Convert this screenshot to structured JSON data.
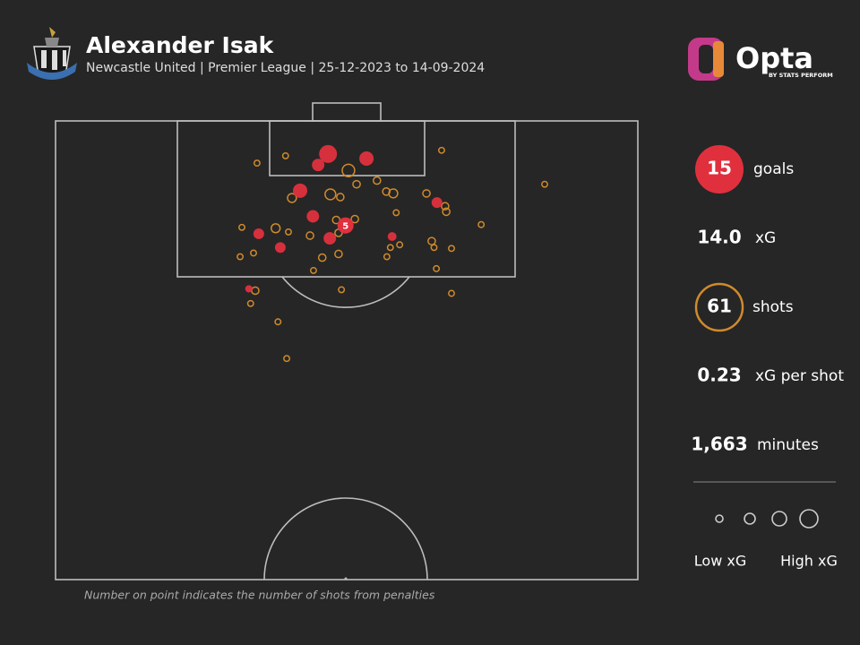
{
  "header": {
    "title": "Alexander Isak",
    "subtitle": "Newcastle United | Premier League | 25-12-2023 to 14-09-2024"
  },
  "brand": {
    "name": "Opta",
    "tagline": "BY STATS PERFORM"
  },
  "summary": {
    "goals": "15",
    "xg": {
      "value": "14.0",
      "label": "xG"
    },
    "shots": "61",
    "xg_per_shot": {
      "value": "0.23",
      "label": "xG per shot"
    },
    "minutes": {
      "value": "1,663",
      "label": "minutes"
    }
  },
  "size_legend": {
    "low": "Low xG",
    "high": "High xG"
  },
  "footnote": "Number on point indicates the number of shots from penalties",
  "chart_data": {
    "type": "scatter",
    "xlim": [
      0,
      100
    ],
    "ylim": [
      0,
      50
    ],
    "series": [
      {
        "name": "goals",
        "color": "#e0303e",
        "x": [
          46.8,
          45.1,
          53.4,
          42.0,
          44.2,
          34.9,
          38.6,
          47.1,
          57.8,
          65.5,
          33.2
        ],
        "y": [
          3.6,
          4.8,
          4.1,
          7.6,
          10.4,
          12.3,
          13.8,
          12.8,
          12.6,
          8.9,
          18.3
        ],
        "xg": [
          0.44,
          0.17,
          0.25,
          0.25,
          0.17,
          0.11,
          0.11,
          0.17,
          0.06,
          0.11,
          0.03
        ]
      },
      {
        "name": "shots",
        "color": "#d08a2c",
        "x": [
          34.6,
          39.5,
          66.3,
          84.0,
          50.3,
          47.2,
          48.9,
          51.7,
          55.2,
          56.8,
          58.0,
          63.7,
          66.9,
          67.1,
          58.5,
          40.6,
          48.2,
          51.4,
          32.0,
          37.8,
          40.0,
          43.7,
          48.6,
          73.1,
          64.6,
          65.0,
          59.1,
          57.5,
          68.0,
          31.7,
          34.0,
          45.8,
          48.6,
          56.9,
          44.3,
          65.4,
          34.3,
          49.1,
          68.0,
          33.5,
          38.2,
          39.7
        ],
        "y": [
          4.6,
          3.8,
          3.2,
          6.9,
          5.4,
          8.0,
          8.3,
          6.9,
          6.5,
          7.7,
          7.9,
          7.9,
          9.3,
          9.9,
          10.0,
          8.4,
          10.8,
          10.7,
          11.6,
          11.7,
          12.1,
          12.5,
          12.2,
          11.3,
          13.1,
          13.8,
          13.5,
          13.8,
          13.9,
          14.8,
          14.4,
          14.9,
          14.5,
          14.8,
          16.3,
          16.1,
          18.5,
          18.4,
          18.8,
          19.9,
          21.9,
          25.9
        ],
        "xg": [
          0.01,
          0.01,
          0.01,
          0.01,
          0.17,
          0.11,
          0.03,
          0.03,
          0.03,
          0.03,
          0.06,
          0.03,
          0.03,
          0.03,
          0.01,
          0.06,
          0.03,
          0.03,
          0.01,
          0.06,
          0.01,
          0.03,
          0.03,
          0.01,
          0.03,
          0.01,
          0.01,
          0.01,
          0.01,
          0.01,
          0.01,
          0.03,
          0.03,
          0.01,
          0.01,
          0.01,
          0.03,
          0.01,
          0.01,
          0.01,
          0.01,
          0.01
        ]
      }
    ],
    "penalty": {
      "x": 49.8,
      "y": 11.4,
      "xg": 0.34,
      "count": 5
    }
  }
}
